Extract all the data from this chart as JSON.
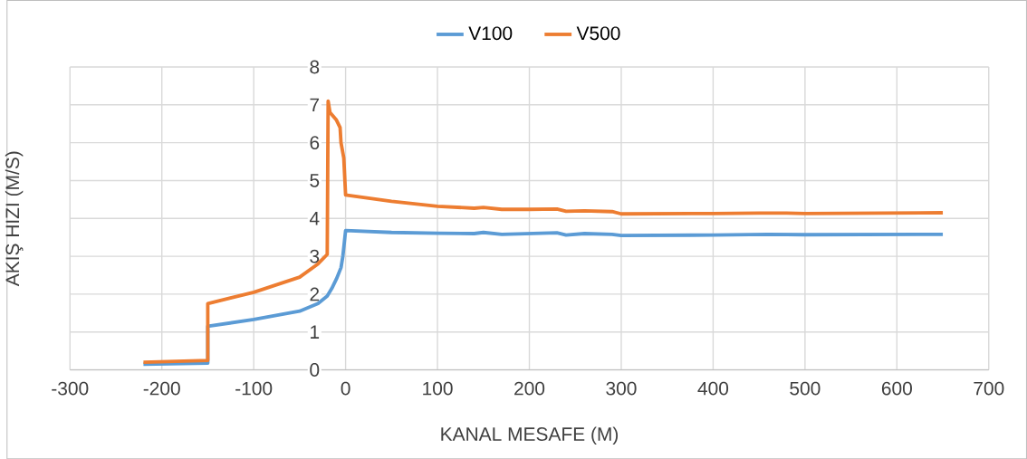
{
  "chart_data": {
    "type": "line",
    "xlabel": "KANAL MESAFE (M)",
    "ylabel": "AKIŞ HIZI (M/S)",
    "xlim": [
      -300,
      700
    ],
    "ylim": [
      0,
      8
    ],
    "xticks": [
      -300,
      -200,
      -100,
      0,
      100,
      200,
      300,
      400,
      500,
      600,
      700
    ],
    "yticks": [
      0,
      1,
      2,
      3,
      4,
      5,
      6,
      7,
      8
    ],
    "grid": true,
    "legend": "top",
    "series": [
      {
        "name": "V100",
        "color": "#5b9bd5",
        "x": [
          -220,
          -150,
          -150,
          -100,
          -50,
          -30,
          -20,
          -15,
          -10,
          -5,
          -3,
          0,
          50,
          100,
          140,
          150,
          170,
          200,
          230,
          240,
          260,
          290,
          300,
          400,
          460,
          500,
          650
        ],
        "values": [
          0.15,
          0.18,
          1.15,
          1.33,
          1.55,
          1.75,
          1.95,
          2.15,
          2.4,
          2.7,
          3.0,
          3.68,
          3.63,
          3.61,
          3.6,
          3.63,
          3.58,
          3.6,
          3.62,
          3.56,
          3.6,
          3.58,
          3.55,
          3.56,
          3.58,
          3.57,
          3.58
        ]
      },
      {
        "name": "V500",
        "color": "#ed7d31",
        "x": [
          -220,
          -150,
          -150,
          -100,
          -50,
          -30,
          -20,
          -19,
          -17,
          -10,
          -6,
          -5,
          -2,
          0,
          50,
          100,
          140,
          150,
          170,
          200,
          230,
          240,
          260,
          290,
          300,
          400,
          450,
          480,
          500,
          650
        ],
        "values": [
          0.2,
          0.25,
          1.75,
          2.05,
          2.45,
          2.8,
          3.05,
          7.1,
          6.8,
          6.6,
          6.4,
          6.0,
          5.6,
          4.62,
          4.45,
          4.32,
          4.27,
          4.29,
          4.24,
          4.24,
          4.25,
          4.19,
          4.2,
          4.18,
          4.12,
          4.13,
          4.14,
          4.14,
          4.13,
          4.15
        ]
      }
    ]
  }
}
